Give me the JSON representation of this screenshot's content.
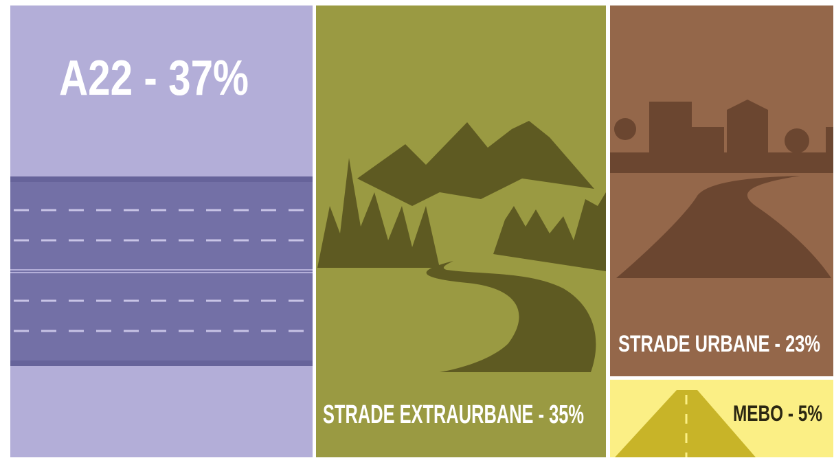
{
  "panels": [
    {
      "label": "A22 - 37%"
    },
    {
      "label": "STRADE EXTRAURBANE - 35%"
    },
    {
      "label": "STRADE URBANE - 23%"
    },
    {
      "label": "MEBO - 5%"
    }
  ]
}
